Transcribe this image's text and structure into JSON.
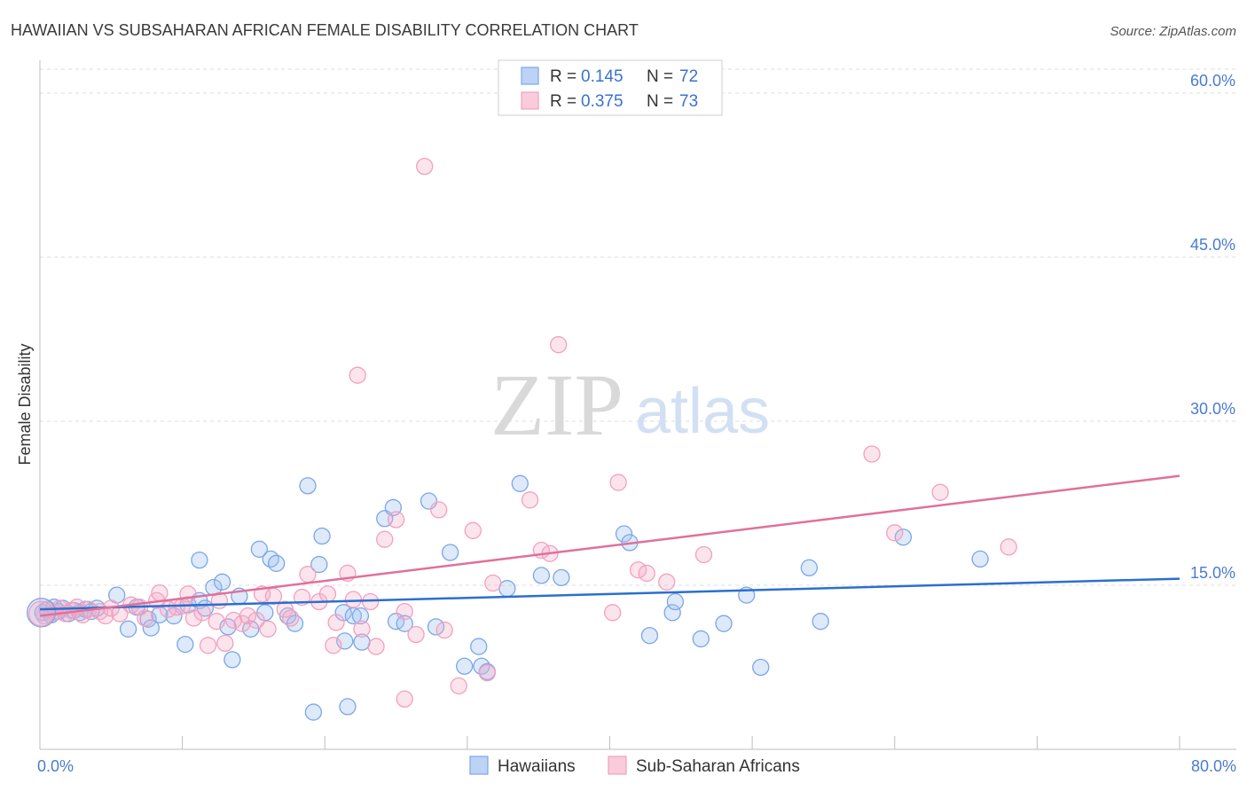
{
  "chart_data": {
    "type": "scatter",
    "title": "HAWAIIAN VS SUBSAHARAN AFRICAN FEMALE DISABILITY CORRELATION CHART",
    "source": "Source: ZipAtlas.com",
    "xlabel": "",
    "ylabel": "Female Disability",
    "xlim": [
      0,
      80
    ],
    "ylim": [
      0,
      63
    ],
    "x_ticks": [
      {
        "value": 0,
        "label": "0.0%"
      },
      {
        "value": 80,
        "label": "80.0%"
      }
    ],
    "y_ticks": [
      {
        "value": 15,
        "label": "15.0%"
      },
      {
        "value": 30,
        "label": "30.0%"
      },
      {
        "value": 45,
        "label": "45.0%"
      },
      {
        "value": 60,
        "label": "60.0%"
      }
    ],
    "grid": true,
    "legend_position": "top-center",
    "stats": [
      {
        "r_label": "R =",
        "r_value": "0.145",
        "n_label": "N =",
        "n_value": "72"
      },
      {
        "r_label": "R =",
        "r_value": "0.375",
        "n_label": "N =",
        "n_value": "73"
      }
    ],
    "series": [
      {
        "name": "Hawaiians",
        "color": "#7aa6e8",
        "line_color": "#2b6fd0",
        "trend": [
          [
            0,
            12.8
          ],
          [
            80,
            15.6
          ]
        ],
        "points": [
          [
            0.2,
            12.5
          ],
          [
            0.5,
            12.8
          ],
          [
            0.8,
            12.3
          ],
          [
            1.0,
            13.0
          ],
          [
            1.3,
            12.6
          ],
          [
            1.6,
            12.9
          ],
          [
            2.0,
            12.4
          ],
          [
            2.4,
            12.7
          ],
          [
            2.8,
            12.5
          ],
          [
            3.2,
            12.8
          ],
          [
            3.6,
            12.6
          ],
          [
            4.0,
            12.9
          ],
          [
            5.4,
            14.1
          ],
          [
            6.2,
            11.0
          ],
          [
            6.8,
            13.0
          ],
          [
            7.6,
            11.9
          ],
          [
            7.8,
            11.1
          ],
          [
            8.4,
            12.3
          ],
          [
            9.4,
            12.2
          ],
          [
            10.4,
            13.2
          ],
          [
            10.2,
            9.6
          ],
          [
            11.2,
            13.6
          ],
          [
            11.2,
            17.3
          ],
          [
            11.6,
            12.9
          ],
          [
            12.2,
            14.8
          ],
          [
            12.8,
            15.3
          ],
          [
            13.2,
            11.2
          ],
          [
            13.5,
            8.2
          ],
          [
            14.0,
            14.0
          ],
          [
            14.8,
            11.0
          ],
          [
            15.4,
            18.3
          ],
          [
            15.8,
            12.5
          ],
          [
            16.2,
            17.4
          ],
          [
            16.6,
            17.0
          ],
          [
            17.4,
            12.2
          ],
          [
            17.9,
            11.5
          ],
          [
            18.8,
            24.1
          ],
          [
            19.6,
            16.9
          ],
          [
            19.8,
            19.5
          ],
          [
            19.2,
            3.4
          ],
          [
            21.3,
            12.5
          ],
          [
            21.4,
            9.9
          ],
          [
            21.6,
            3.9
          ],
          [
            22.0,
            12.2
          ],
          [
            22.5,
            12.2
          ],
          [
            22.6,
            9.8
          ],
          [
            24.2,
            21.1
          ],
          [
            24.8,
            22.1
          ],
          [
            25.0,
            11.7
          ],
          [
            25.6,
            11.5
          ],
          [
            27.3,
            22.7
          ],
          [
            27.8,
            11.2
          ],
          [
            28.8,
            18.0
          ],
          [
            29.8,
            7.6
          ],
          [
            30.8,
            9.4
          ],
          [
            31.0,
            7.6
          ],
          [
            31.4,
            7.1
          ],
          [
            32.8,
            14.7
          ],
          [
            33.7,
            24.3
          ],
          [
            35.2,
            15.9
          ],
          [
            36.6,
            15.7
          ],
          [
            41.0,
            19.7
          ],
          [
            41.4,
            18.9
          ],
          [
            42.8,
            10.4
          ],
          [
            44.4,
            12.5
          ],
          [
            44.6,
            13.5
          ],
          [
            46.4,
            10.1
          ],
          [
            48.0,
            11.5
          ],
          [
            49.6,
            14.1
          ],
          [
            50.6,
            7.5
          ],
          [
            54.0,
            16.6
          ],
          [
            54.8,
            11.7
          ],
          [
            60.6,
            19.4
          ],
          [
            66.0,
            17.4
          ]
        ]
      },
      {
        "name": "Sub-Saharan Africans",
        "color": "#f2a0bd",
        "line_color": "#e0709a",
        "trend": [
          [
            0,
            12.2
          ],
          [
            80,
            25.0
          ]
        ],
        "points": [
          [
            0.3,
            12.2
          ],
          [
            0.6,
            12.8
          ],
          [
            1.0,
            12.5
          ],
          [
            1.4,
            12.9
          ],
          [
            1.8,
            12.4
          ],
          [
            2.2,
            12.7
          ],
          [
            2.6,
            13.0
          ],
          [
            3.0,
            12.3
          ],
          [
            3.4,
            12.8
          ],
          [
            4.2,
            12.6
          ],
          [
            4.6,
            12.2
          ],
          [
            5.0,
            12.9
          ],
          [
            5.6,
            12.4
          ],
          [
            6.4,
            13.2
          ],
          [
            7.0,
            13.0
          ],
          [
            7.4,
            12.0
          ],
          [
            8.2,
            13.6
          ],
          [
            8.4,
            14.3
          ],
          [
            9.0,
            12.8
          ],
          [
            9.6,
            13.0
          ],
          [
            10.0,
            13.1
          ],
          [
            10.4,
            14.2
          ],
          [
            10.8,
            12.0
          ],
          [
            11.4,
            12.5
          ],
          [
            11.8,
            9.5
          ],
          [
            12.4,
            11.7
          ],
          [
            12.6,
            13.6
          ],
          [
            13.0,
            9.7
          ],
          [
            13.6,
            11.8
          ],
          [
            14.2,
            11.5
          ],
          [
            14.6,
            12.2
          ],
          [
            15.2,
            11.8
          ],
          [
            15.6,
            14.2
          ],
          [
            16.0,
            11.0
          ],
          [
            16.4,
            14.0
          ],
          [
            17.2,
            12.8
          ],
          [
            17.6,
            12.0
          ],
          [
            18.4,
            13.9
          ],
          [
            18.8,
            16.0
          ],
          [
            19.6,
            13.5
          ],
          [
            20.2,
            14.2
          ],
          [
            20.6,
            9.5
          ],
          [
            20.8,
            11.6
          ],
          [
            21.6,
            16.1
          ],
          [
            22.0,
            13.7
          ],
          [
            22.6,
            11.0
          ],
          [
            23.2,
            13.5
          ],
          [
            23.6,
            9.4
          ],
          [
            24.2,
            19.2
          ],
          [
            25.0,
            21.0
          ],
          [
            25.6,
            12.6
          ],
          [
            25.6,
            4.6
          ],
          [
            26.4,
            10.5
          ],
          [
            27.0,
            53.3
          ],
          [
            28.0,
            21.9
          ],
          [
            28.4,
            10.9
          ],
          [
            29.4,
            5.8
          ],
          [
            30.4,
            20.0
          ],
          [
            31.4,
            7.0
          ],
          [
            31.8,
            15.2
          ],
          [
            22.3,
            34.2
          ],
          [
            34.4,
            22.8
          ],
          [
            35.2,
            18.2
          ],
          [
            35.8,
            17.9
          ],
          [
            36.4,
            37.0
          ],
          [
            40.2,
            12.5
          ],
          [
            40.6,
            24.4
          ],
          [
            42.0,
            16.4
          ],
          [
            42.6,
            16.1
          ],
          [
            44.0,
            15.3
          ],
          [
            46.6,
            17.8
          ],
          [
            58.4,
            27.0
          ],
          [
            60.0,
            19.8
          ],
          [
            63.2,
            23.5
          ],
          [
            68.0,
            18.5
          ]
        ]
      }
    ]
  },
  "watermark": {
    "zip": "ZIP",
    "atlas": "atlas"
  }
}
